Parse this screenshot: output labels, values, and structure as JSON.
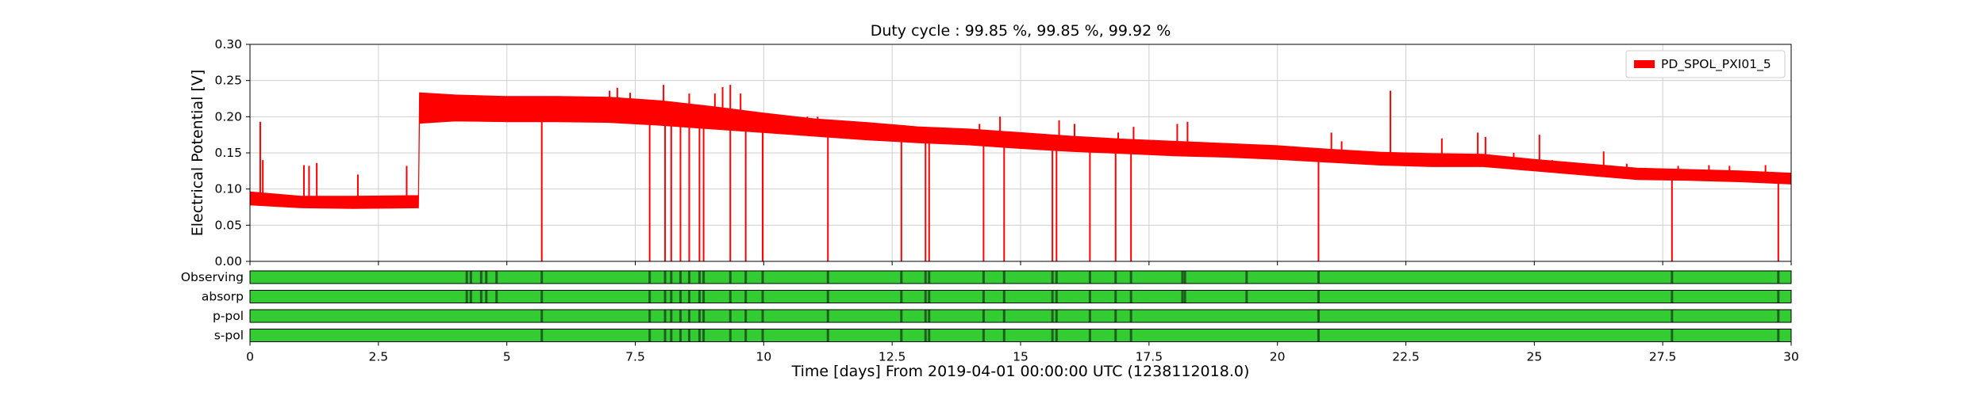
{
  "chart_data": {
    "type": "line",
    "title": "Duty cycle : 99.85 %, 99.85 %, 99.92 %",
    "xlabel": "Time [days] From 2019-04-01 00:00:00 UTC (1238112018.0)",
    "ylabel": "Electrical Potential [V]",
    "xlim": [
      0,
      30
    ],
    "ylim": [
      0,
      0.3
    ],
    "x_ticks": [
      0,
      2.5,
      5,
      7.5,
      10,
      12.5,
      15,
      17.5,
      20,
      22.5,
      25,
      27.5,
      30
    ],
    "x_tick_labels": [
      "0",
      "2.5",
      "5",
      "7.5",
      "10",
      "12.5",
      "15",
      "17.5",
      "20",
      "22.5",
      "25",
      "27.5",
      "30"
    ],
    "y_ticks": [
      0,
      0.05,
      0.1,
      0.15,
      0.2,
      0.25,
      0.3
    ],
    "y_tick_labels": [
      "0.00",
      "0.05",
      "0.10",
      "0.15",
      "0.20",
      "0.25",
      "0.30"
    ],
    "grid": true,
    "legend_position": "top-right",
    "series": [
      {
        "name": "PD_SPOL_PXI01_5",
        "color": "#ff0000",
        "band": {
          "x": [
            0,
            1.0,
            2.0,
            3.28,
            3.3,
            4.0,
            5.0,
            6.0,
            7.0,
            8.0,
            9.0,
            10.0,
            11.0,
            12.0,
            13.0,
            14.0,
            15.0,
            16.0,
            17.0,
            18.0,
            19.0,
            20.0,
            21.0,
            22.0,
            23.0,
            24.0,
            25.0,
            26.0,
            27.0,
            28.0,
            29.0,
            30.0
          ],
          "low": [
            0.078,
            0.074,
            0.073,
            0.074,
            0.191,
            0.194,
            0.193,
            0.193,
            0.192,
            0.188,
            0.183,
            0.178,
            0.173,
            0.168,
            0.164,
            0.161,
            0.156,
            0.152,
            0.149,
            0.146,
            0.144,
            0.141,
            0.137,
            0.133,
            0.131,
            0.131,
            0.125,
            0.119,
            0.113,
            0.112,
            0.11,
            0.107
          ],
          "high": [
            0.096,
            0.09,
            0.09,
            0.091,
            0.233,
            0.23,
            0.228,
            0.228,
            0.227,
            0.222,
            0.214,
            0.205,
            0.197,
            0.192,
            0.186,
            0.183,
            0.178,
            0.173,
            0.169,
            0.166,
            0.163,
            0.16,
            0.155,
            0.151,
            0.149,
            0.148,
            0.141,
            0.135,
            0.129,
            0.127,
            0.125,
            0.122
          ]
        },
        "dropouts": [
          5.68,
          7.78,
          8.08,
          8.2,
          8.38,
          8.55,
          8.75,
          8.83,
          9.35,
          9.65,
          9.98,
          11.25,
          12.68,
          13.15,
          13.22,
          14.28,
          14.68,
          15.62,
          15.7,
          16.35,
          16.85,
          17.15,
          20.8,
          27.68,
          29.75
        ],
        "spikes": [
          {
            "x": 0.2,
            "y": 0.193
          },
          {
            "x": 0.25,
            "y": 0.14
          },
          {
            "x": 1.05,
            "y": 0.133
          },
          {
            "x": 1.15,
            "y": 0.132
          },
          {
            "x": 1.3,
            "y": 0.136
          },
          {
            "x": 2.1,
            "y": 0.12
          },
          {
            "x": 3.05,
            "y": 0.132
          },
          {
            "x": 7.0,
            "y": 0.236
          },
          {
            "x": 7.15,
            "y": 0.24
          },
          {
            "x": 7.4,
            "y": 0.233
          },
          {
            "x": 8.05,
            "y": 0.244
          },
          {
            "x": 8.55,
            "y": 0.232
          },
          {
            "x": 9.05,
            "y": 0.232
          },
          {
            "x": 9.2,
            "y": 0.241
          },
          {
            "x": 9.35,
            "y": 0.244
          },
          {
            "x": 9.55,
            "y": 0.232
          },
          {
            "x": 10.85,
            "y": 0.2
          },
          {
            "x": 11.05,
            "y": 0.2
          },
          {
            "x": 12.85,
            "y": 0.173
          },
          {
            "x": 13.0,
            "y": 0.18
          },
          {
            "x": 14.2,
            "y": 0.19
          },
          {
            "x": 14.6,
            "y": 0.2
          },
          {
            "x": 15.75,
            "y": 0.195
          },
          {
            "x": 16.05,
            "y": 0.19
          },
          {
            "x": 16.9,
            "y": 0.178
          },
          {
            "x": 17.2,
            "y": 0.186
          },
          {
            "x": 18.05,
            "y": 0.19
          },
          {
            "x": 18.25,
            "y": 0.193
          },
          {
            "x": 20.45,
            "y": 0.15
          },
          {
            "x": 21.05,
            "y": 0.178
          },
          {
            "x": 21.25,
            "y": 0.166
          },
          {
            "x": 21.7,
            "y": 0.15
          },
          {
            "x": 22.2,
            "y": 0.236
          },
          {
            "x": 22.35,
            "y": 0.14
          },
          {
            "x": 23.2,
            "y": 0.17
          },
          {
            "x": 23.9,
            "y": 0.178
          },
          {
            "x": 24.05,
            "y": 0.172
          },
          {
            "x": 24.6,
            "y": 0.15
          },
          {
            "x": 25.1,
            "y": 0.175
          },
          {
            "x": 25.35,
            "y": 0.14
          },
          {
            "x": 26.35,
            "y": 0.152
          },
          {
            "x": 26.8,
            "y": 0.135
          },
          {
            "x": 27.8,
            "y": 0.132
          },
          {
            "x": 28.4,
            "y": 0.133
          },
          {
            "x": 28.8,
            "y": 0.132
          },
          {
            "x": 29.5,
            "y": 0.133
          }
        ]
      }
    ],
    "segments": {
      "rows": [
        "Observing",
        "absorp",
        "p-pol",
        "s-pol"
      ],
      "active_color": "#33cc33",
      "gap_color": "#1f5f1f",
      "gaps": {
        "Observing": [
          4.22,
          4.3,
          4.5,
          4.6,
          4.8,
          5.68,
          7.78,
          8.08,
          8.2,
          8.38,
          8.55,
          8.75,
          8.83,
          9.35,
          9.65,
          9.98,
          11.25,
          12.68,
          13.15,
          13.22,
          14.28,
          14.68,
          15.62,
          15.7,
          16.35,
          16.85,
          17.15,
          18.15,
          18.2,
          19.4,
          20.8,
          27.68,
          29.75
        ],
        "absorp": [
          4.22,
          4.3,
          4.5,
          4.6,
          4.8,
          5.68,
          7.78,
          8.08,
          8.2,
          8.38,
          8.55,
          8.75,
          8.83,
          9.35,
          9.65,
          9.98,
          11.25,
          12.68,
          13.15,
          13.22,
          14.28,
          14.68,
          15.62,
          15.7,
          16.35,
          16.85,
          17.15,
          18.15,
          18.2,
          19.4,
          20.8,
          27.68,
          29.75
        ],
        "p-pol": [
          5.68,
          7.78,
          8.08,
          8.2,
          8.38,
          8.55,
          8.75,
          8.83,
          9.35,
          9.65,
          9.98,
          11.25,
          12.68,
          13.15,
          13.22,
          14.28,
          14.68,
          15.62,
          15.7,
          16.35,
          16.85,
          17.15,
          20.8,
          27.68,
          29.75
        ],
        "s-pol": [
          5.68,
          7.78,
          8.08,
          8.2,
          8.38,
          8.55,
          8.75,
          8.83,
          9.35,
          9.65,
          9.98,
          11.25,
          12.68,
          13.15,
          13.22,
          14.28,
          14.68,
          15.62,
          15.7,
          16.35,
          16.85,
          17.15,
          20.8,
          27.68,
          29.75
        ]
      }
    }
  }
}
